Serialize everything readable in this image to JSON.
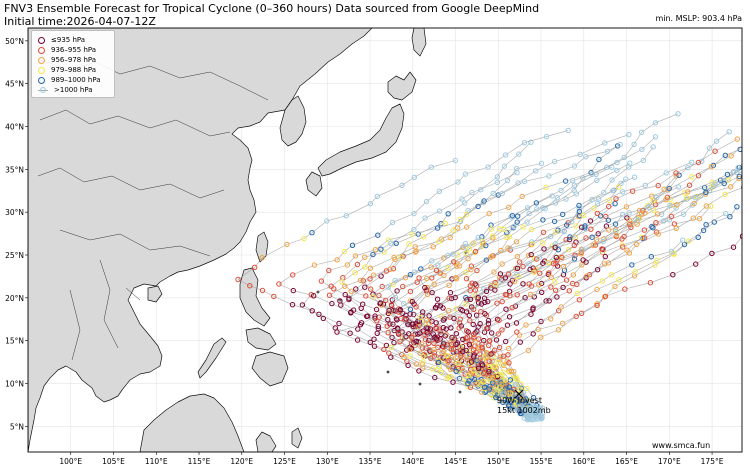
{
  "header": {
    "title_line1": "FNV3 Ensemble Forecast for Tropical Cyclone (0–360 hours) Data sourced from Google DeepMind",
    "title_line2": "Initial time:2026-04-07-12Z",
    "min_mslp": "min. MSLP: 903.4 hPa"
  },
  "legend": [
    {
      "label": "≤935 hPa",
      "color": "#7a0030"
    },
    {
      "label": "936–955 hPa",
      "color": "#e34a33"
    },
    {
      "label": "956–978 hPa",
      "color": "#f5a340"
    },
    {
      "label": "979–988 hPa",
      "color": "#f5e94a"
    },
    {
      "label": "989–1000 hPa",
      "color": "#2166ac"
    },
    {
      "label": ">1000 hPa",
      "color": "#9ecae1"
    }
  ],
  "axes": {
    "lat_labels": [
      "50°N",
      "45°N",
      "40°N",
      "35°N",
      "30°N",
      "25°N",
      "20°N",
      "15°N",
      "10°N",
      "5°N"
    ],
    "lon_labels": [
      "100°E",
      "105°E",
      "110°E",
      "115°E",
      "120°E",
      "125°E",
      "130°E",
      "135°E",
      "140°E",
      "145°E",
      "150°E",
      "155°E",
      "160°E",
      "165°E",
      "170°E",
      "175°E"
    ],
    "lon_range": [
      95,
      178.5
    ],
    "lat_range": [
      2,
      51.5
    ]
  },
  "storm": {
    "name": "90W Invest",
    "intensity": "15kt 1002mb",
    "lon": 154.0,
    "lat": 6.5
  },
  "watermark": "www.smca.fun",
  "colors": {
    "land": "#d9d9d9",
    "ocean": "#ffffff",
    "coast": "#000000",
    "grid": "#e3e3e3",
    "track_line": "#9a9a9a"
  }
}
